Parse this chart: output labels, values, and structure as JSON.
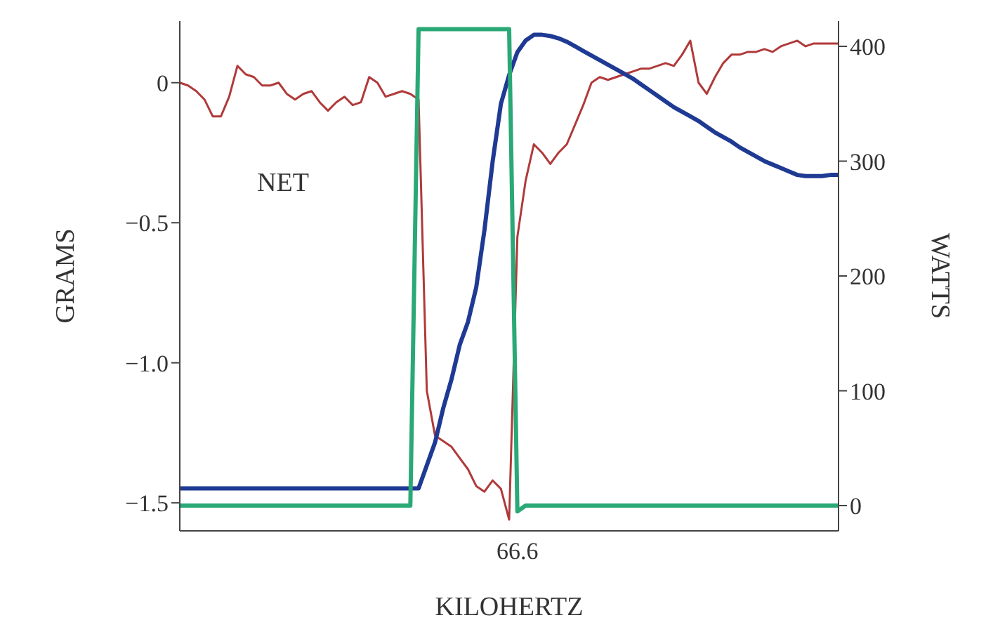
{
  "chart_data": {
    "type": "line",
    "xlabel": "KILOHERTZ",
    "ylabel": "GRAMS",
    "y2label": "WATTS",
    "annotations": [
      "NET"
    ],
    "categories": [
      null,
      null,
      null,
      null,
      null,
      null,
      null,
      null,
      null,
      null,
      null,
      null,
      null,
      null,
      null,
      null,
      null,
      null,
      null,
      null,
      null,
      null,
      null,
      null,
      null,
      null,
      null,
      null,
      null,
      null,
      null,
      null,
      null,
      null,
      null,
      null,
      null,
      null,
      null,
      null,
      null,
      "66.6",
      null,
      null,
      null,
      null,
      null,
      null,
      null,
      null,
      null,
      null,
      null,
      null,
      null,
      null,
      null,
      null,
      null,
      null,
      null,
      null,
      null,
      null,
      null,
      null,
      null,
      null,
      null,
      null,
      null,
      null,
      null,
      null,
      null,
      null,
      null,
      null,
      null,
      null,
      null
    ],
    "series": [
      {
        "color": "#b03a3a",
        "values": [
          0.0,
          -0.01,
          -0.03,
          -0.06,
          -0.12,
          -0.12,
          -0.05,
          0.06,
          0.03,
          0.02,
          -0.01,
          -0.01,
          0.0,
          -0.04,
          -0.06,
          -0.04,
          -0.03,
          -0.07,
          -0.1,
          -0.07,
          -0.05,
          -0.08,
          -0.07,
          0.02,
          0.0,
          -0.05,
          -0.04,
          -0.03,
          -0.04,
          -0.06,
          -1.1,
          -1.26,
          -1.28,
          -1.3,
          -1.34,
          -1.38,
          -1.44,
          -1.46,
          -1.42,
          -1.45,
          -1.56,
          -0.55,
          -0.35,
          -0.22,
          -0.25,
          -0.29,
          -0.25,
          -0.22,
          -0.15,
          -0.08,
          0.0,
          0.02,
          0.01,
          0.02,
          0.03,
          0.04,
          0.05,
          0.05,
          0.06,
          0.07,
          0.06,
          0.1,
          0.15,
          0.0,
          -0.04,
          0.02,
          0.07,
          0.1,
          0.1,
          0.11,
          0.11,
          0.12,
          0.11,
          0.13,
          0.14,
          0.15,
          0.13,
          0.14,
          0.14,
          0.14,
          0.14
        ]
      },
      {
        "color": "#1f3a93",
        "axis": "y2",
        "values": [
          15,
          15,
          15,
          15,
          15,
          15,
          15,
          15,
          15,
          15,
          15,
          15,
          15,
          15,
          15,
          15,
          15,
          15,
          15,
          15,
          15,
          15,
          15,
          15,
          15,
          15,
          15,
          15,
          15,
          15,
          35,
          55,
          85,
          110,
          140,
          160,
          190,
          240,
          300,
          350,
          375,
          395,
          405,
          410,
          410,
          409,
          407,
          404,
          400,
          396,
          392,
          388,
          384,
          380,
          376,
          372,
          367,
          362,
          357,
          352,
          347,
          343,
          339,
          335,
          330,
          325,
          321,
          317,
          312,
          308,
          304,
          300,
          297,
          294,
          291,
          288,
          287,
          287,
          287,
          288,
          288
        ]
      },
      {
        "color": "#2aa876",
        "axis": "y2",
        "values": [
          0,
          0,
          0,
          0,
          0,
          0,
          0,
          0,
          0,
          0,
          0,
          0,
          0,
          0,
          0,
          0,
          0,
          0,
          0,
          0,
          0,
          0,
          0,
          0,
          0,
          0,
          0,
          0,
          0,
          415,
          415,
          415,
          415,
          415,
          415,
          415,
          415,
          415,
          415,
          415,
          415,
          -5,
          0,
          0,
          0,
          0,
          0,
          0,
          0,
          0,
          0,
          0,
          0,
          0,
          0,
          0,
          0,
          0,
          0,
          0,
          0,
          0,
          0,
          0,
          0,
          0,
          0,
          0,
          0,
          0,
          0,
          0,
          0,
          0,
          0,
          0,
          0,
          0,
          0,
          0,
          0
        ]
      }
    ],
    "ylim": [
      -1.6,
      0.22
    ],
    "yticks": [
      {
        "value": -1.5,
        "label": "−1.5"
      },
      {
        "value": -1.0,
        "label": "−1.0"
      },
      {
        "value": -0.5,
        "label": "−0.5"
      },
      0
    ],
    "y2lim": [
      -22,
      422
    ],
    "y2ticks": [
      0,
      100,
      200,
      300,
      400
    ],
    "marker": "none",
    "line_style": "solid"
  }
}
